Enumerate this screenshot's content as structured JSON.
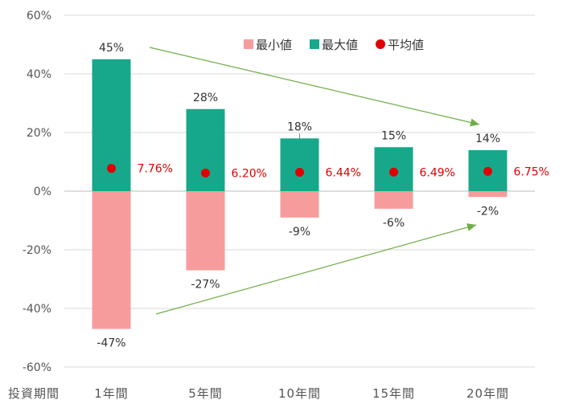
{
  "chart_data": {
    "type": "bar",
    "categories": [
      "1年間",
      "5年間",
      "10年間",
      "15年間",
      "20年間"
    ],
    "x_axis_title": "投資期間",
    "series": [
      {
        "name": "最小値",
        "color": "#f79c9c",
        "values": [
          -47,
          -27,
          -9,
          -6,
          -2
        ],
        "labels": [
          "-47%",
          "-27%",
          "-9%",
          "-6%",
          "-2%"
        ]
      },
      {
        "name": "最大値",
        "color": "#17a88c",
        "values": [
          45,
          28,
          18,
          15,
          14
        ],
        "labels": [
          "45%",
          "28%",
          "18%",
          "15%",
          "14%"
        ]
      },
      {
        "name": "平均値",
        "color": "#e00000",
        "values": [
          7.76,
          6.2,
          6.44,
          6.49,
          6.75
        ],
        "labels": [
          "7.76%",
          "6.20%",
          "6.44%",
          "6.49%",
          "6.75%"
        ]
      }
    ],
    "y_ticks": [
      "60%",
      "40%",
      "20%",
      "0%",
      "-20%",
      "-40%",
      "-60%"
    ],
    "ylim": [
      -60,
      60
    ],
    "grid": true,
    "legend_position": "top-right",
    "annotation_color": "#70ad47",
    "annotations": [
      "arrow converging downward from top-left",
      "arrow converging upward from bottom-left"
    ]
  }
}
